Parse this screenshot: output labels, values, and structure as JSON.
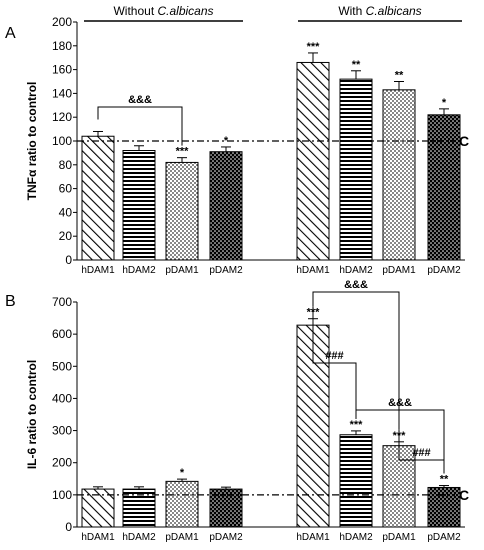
{
  "chart_data": [
    {
      "type": "bar",
      "panel_label": "A",
      "ylabel": "TNFα ratio to control",
      "ylim": [
        0,
        200
      ],
      "yticks": [
        "0",
        "20",
        "40",
        "60",
        "80",
        "100",
        "120",
        "140",
        "160",
        "180",
        "200"
      ],
      "group_labels": [
        {
          "prefix": "Without ",
          "italic": "C.albicans"
        },
        {
          "prefix": "With ",
          "italic": "C.albicans"
        }
      ],
      "categories": [
        "hDAM1",
        "hDAM2",
        "pDAM1",
        "pDAM2",
        "hDAM1",
        "hDAM2",
        "pDAM1",
        "pDAM2"
      ],
      "values": [
        104,
        92,
        82,
        91,
        166,
        152,
        143,
        122
      ],
      "errors": [
        4,
        4,
        4,
        4,
        8,
        7,
        7,
        5
      ],
      "significance": [
        "",
        "",
        "***",
        "*",
        "***",
        "**",
        "**",
        "*"
      ],
      "reference_line": {
        "value": 100,
        "label": "C"
      },
      "brackets": [
        {
          "from": 0,
          "to": 2,
          "label": "&&&"
        }
      ]
    },
    {
      "type": "bar",
      "panel_label": "B",
      "ylabel": "IL-6 ratio to control",
      "ylim": [
        0,
        700
      ],
      "yticks": [
        "0",
        "100",
        "200",
        "300",
        "400",
        "500",
        "600",
        "700"
      ],
      "categories": [
        "hDAM1",
        "hDAM2",
        "pDAM1",
        "pDAM2",
        "hDAM1",
        "hDAM2",
        "pDAM1",
        "pDAM2"
      ],
      "values": [
        118,
        118,
        142,
        118,
        628,
        287,
        253,
        123
      ],
      "errors": [
        7,
        7,
        7,
        6,
        20,
        12,
        12,
        6
      ],
      "significance": [
        "",
        "",
        "*",
        "",
        "***",
        "***",
        "***",
        "**"
      ],
      "reference_line": {
        "value": 100,
        "label": "C"
      },
      "brackets": [
        {
          "from": 4,
          "to": 6,
          "label": "&&&"
        },
        {
          "from": 4,
          "to": 5,
          "label": "###"
        },
        {
          "from": 5,
          "to": 7,
          "label": "&&&"
        },
        {
          "from": 6,
          "to": 7,
          "label": "###"
        }
      ]
    }
  ]
}
